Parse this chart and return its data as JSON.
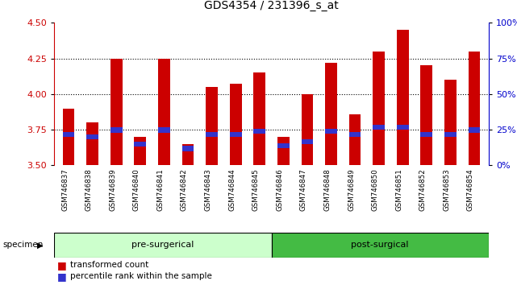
{
  "title": "GDS4354 / 231396_s_at",
  "categories": [
    "GSM746837",
    "GSM746838",
    "GSM746839",
    "GSM746840",
    "GSM746841",
    "GSM746842",
    "GSM746843",
    "GSM746844",
    "GSM746845",
    "GSM746846",
    "GSM746847",
    "GSM746848",
    "GSM746849",
    "GSM746850",
    "GSM746851",
    "GSM746852",
    "GSM746853",
    "GSM746854"
  ],
  "red_values": [
    3.9,
    3.8,
    4.25,
    3.7,
    4.25,
    3.65,
    4.05,
    4.07,
    4.15,
    3.7,
    4.0,
    4.22,
    3.86,
    4.3,
    4.45,
    4.2,
    4.1,
    4.3
  ],
  "blue_positions": [
    3.7,
    3.68,
    3.73,
    3.63,
    3.73,
    3.6,
    3.7,
    3.7,
    3.72,
    3.62,
    3.65,
    3.72,
    3.7,
    3.75,
    3.75,
    3.7,
    3.7,
    3.73
  ],
  "blue_heights": [
    0.035,
    0.035,
    0.035,
    0.035,
    0.035,
    0.035,
    0.035,
    0.035,
    0.035,
    0.035,
    0.035,
    0.035,
    0.035,
    0.035,
    0.035,
    0.035,
    0.035,
    0.035
  ],
  "ymin": 3.5,
  "ymax": 4.5,
  "yticks_left": [
    3.5,
    3.75,
    4.0,
    4.25,
    4.5
  ],
  "yticks_right_labels": [
    "0%",
    "25%",
    "50%",
    "75%",
    "100%"
  ],
  "yticks_right_vals": [
    3.5,
    3.75,
    4.0,
    4.25,
    4.5
  ],
  "pre_surgical_count": 9,
  "post_surgical_count": 9,
  "bar_color": "#cc0000",
  "blue_color": "#3333cc",
  "group_label_pre": "pre-surgerical",
  "group_label_post": "post-surgical",
  "legend_red": "transformed count",
  "legend_blue": "percentile rank within the sample",
  "specimen_label": "specimen",
  "group_bg_pre": "#ccffcc",
  "group_bg_post": "#44bb44",
  "bar_width": 0.5,
  "dotted_lines": [
    3.75,
    4.0,
    4.25
  ],
  "left_axis_color": "#cc0000",
  "right_axis_color": "#0000cc",
  "xtick_bg_color": "#cccccc",
  "plot_bg_color": "#ffffff"
}
